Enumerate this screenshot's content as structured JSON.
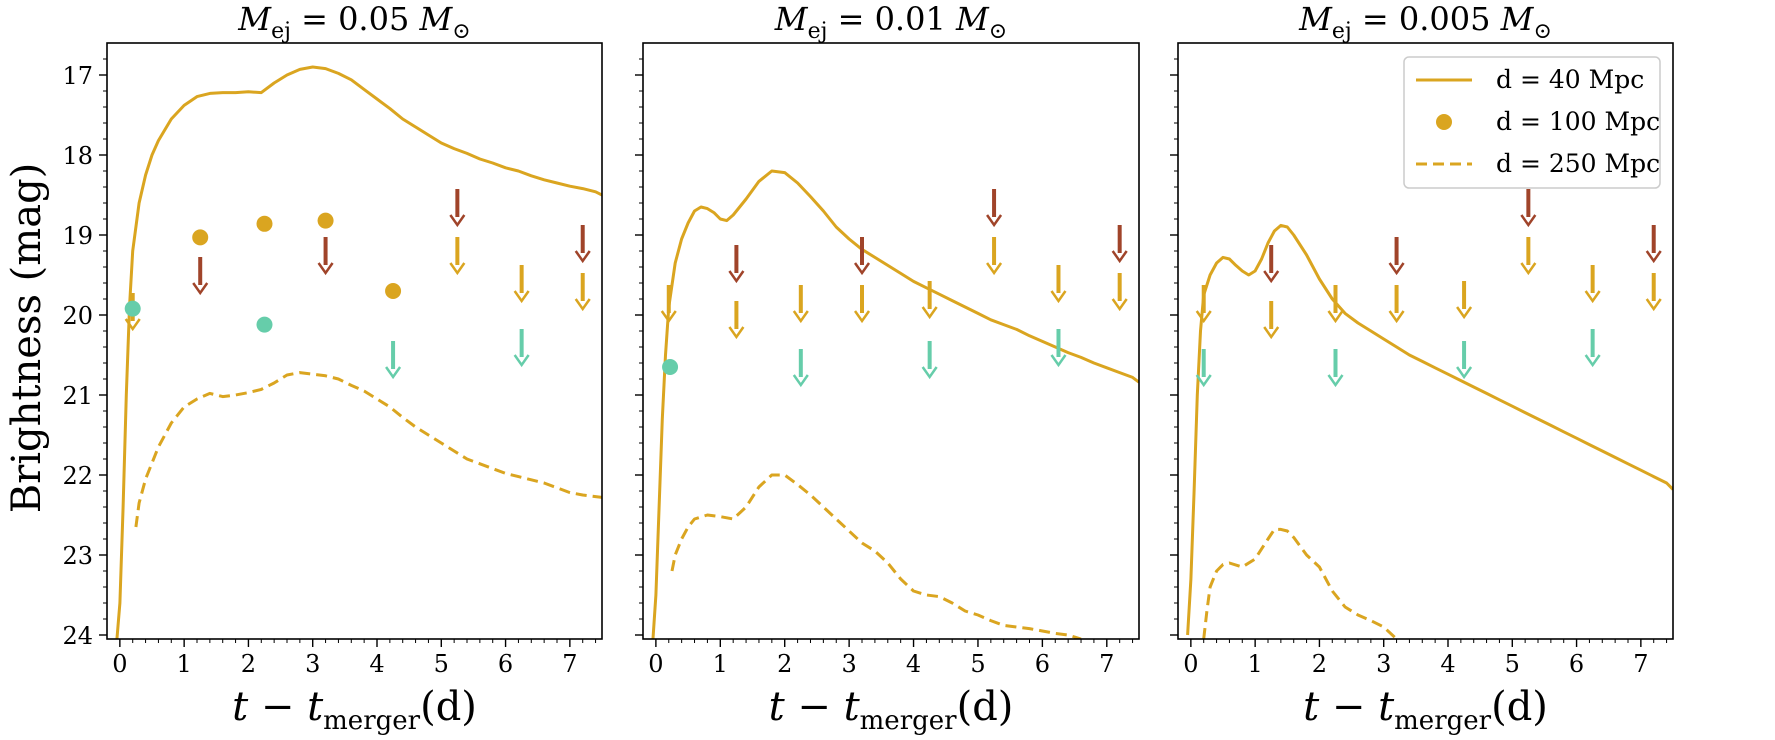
{
  "figure": {
    "ylabel": "Brightness (mag)",
    "xlabel_main": "t − t",
    "xlabel_sub": "merger",
    "xlabel_tail": "(d)"
  },
  "colors": {
    "model": "#DAA520",
    "arrow_brown": "#A0442A",
    "arrow_gold": "#DAA520",
    "arrow_teal": "#66CDAA",
    "point_gold": "#DAA520",
    "point_teal": "#66CDAA"
  },
  "legend": [
    {
      "label": "d = 40 Mpc",
      "style": "solid"
    },
    {
      "label": "d = 100 Mpc",
      "style": "marker"
    },
    {
      "label": "d = 250 Mpc",
      "style": "dashed"
    }
  ],
  "chart_data": [
    {
      "type": "line",
      "title_main": "M",
      "title_sub": "ej",
      "title_value": " = 0.05 M",
      "title_sun": "⊙",
      "xlim": [
        -0.2,
        7.5
      ],
      "ylim": [
        24.05,
        16.6
      ],
      "xticks": [
        "0",
        "1",
        "2",
        "3",
        "4",
        "5",
        "6",
        "7"
      ],
      "yticks": [
        "17",
        "18",
        "19",
        "20",
        "21",
        "22",
        "23",
        "24"
      ],
      "series": [
        {
          "name": "d = 40 Mpc",
          "style": "solid",
          "x": [
            -0.05,
            0.0,
            0.05,
            0.1,
            0.15,
            0.2,
            0.3,
            0.4,
            0.5,
            0.6,
            0.8,
            1.0,
            1.2,
            1.4,
            1.6,
            1.8,
            2.0,
            2.2,
            2.4,
            2.6,
            2.8,
            3.0,
            3.2,
            3.4,
            3.6,
            3.8,
            4.0,
            4.2,
            4.4,
            4.6,
            4.8,
            5.0,
            5.2,
            5.4,
            5.6,
            5.8,
            6.0,
            6.2,
            6.4,
            6.6,
            6.8,
            7.0,
            7.2,
            7.4,
            7.5
          ],
          "y": [
            24.1,
            23.6,
            22.4,
            21.0,
            19.9,
            19.2,
            18.6,
            18.25,
            18.0,
            17.82,
            17.55,
            17.38,
            17.27,
            17.23,
            17.22,
            17.22,
            17.21,
            17.22,
            17.1,
            17.0,
            16.93,
            16.9,
            16.92,
            16.98,
            17.06,
            17.18,
            17.3,
            17.42,
            17.55,
            17.65,
            17.75,
            17.85,
            17.92,
            17.98,
            18.05,
            18.1,
            18.16,
            18.2,
            18.26,
            18.31,
            18.35,
            18.39,
            18.42,
            18.46,
            18.5
          ]
        },
        {
          "name": "d = 250 Mpc",
          "style": "dashed",
          "x": [
            0.25,
            0.3,
            0.4,
            0.5,
            0.6,
            0.8,
            1.0,
            1.2,
            1.4,
            1.6,
            1.8,
            2.0,
            2.2,
            2.4,
            2.6,
            2.8,
            3.0,
            3.2,
            3.4,
            3.6,
            3.8,
            4.0,
            4.2,
            4.4,
            4.6,
            4.8,
            5.0,
            5.2,
            5.4,
            5.6,
            5.8,
            6.0,
            6.2,
            6.4,
            6.6,
            6.8,
            7.0,
            7.2,
            7.4,
            7.5
          ],
          "y": [
            22.65,
            22.35,
            22.05,
            21.85,
            21.65,
            21.35,
            21.15,
            21.05,
            20.98,
            21.02,
            21.0,
            20.97,
            20.93,
            20.85,
            20.75,
            20.72,
            20.74,
            20.76,
            20.8,
            20.88,
            20.95,
            21.05,
            21.15,
            21.28,
            21.4,
            21.5,
            21.6,
            21.7,
            21.8,
            21.86,
            21.92,
            21.98,
            22.02,
            22.06,
            22.1,
            22.16,
            22.22,
            22.25,
            22.27,
            22.28
          ]
        }
      ],
      "points": [
        {
          "x": 1.25,
          "y": 19.03,
          "color": "gold"
        },
        {
          "x": 2.25,
          "y": 18.86,
          "color": "gold"
        },
        {
          "x": 3.2,
          "y": 18.82,
          "color": "gold"
        },
        {
          "x": 4.25,
          "y": 19.7,
          "color": "gold"
        },
        {
          "x": 0.2,
          "y": 19.92,
          "color": "teal"
        },
        {
          "x": 2.25,
          "y": 20.12,
          "color": "teal"
        }
      ],
      "upper_limits": [
        {
          "x": 0.2,
          "y": 19.95,
          "color": "gold"
        },
        {
          "x": 1.25,
          "y": 19.5,
          "color": "brown"
        },
        {
          "x": 3.2,
          "y": 19.25,
          "color": "brown"
        },
        {
          "x": 5.25,
          "y": 18.65,
          "color": "brown"
        },
        {
          "x": 5.25,
          "y": 19.25,
          "color": "gold"
        },
        {
          "x": 6.25,
          "y": 19.6,
          "color": "gold"
        },
        {
          "x": 7.2,
          "y": 19.1,
          "color": "brown"
        },
        {
          "x": 7.2,
          "y": 19.7,
          "color": "gold"
        },
        {
          "x": 4.25,
          "y": 20.55,
          "color": "teal"
        },
        {
          "x": 6.25,
          "y": 20.4,
          "color": "teal"
        }
      ]
    },
    {
      "type": "line",
      "title_main": "M",
      "title_sub": "ej",
      "title_value": " = 0.01 M",
      "title_sun": "⊙",
      "xlim": [
        -0.2,
        7.5
      ],
      "ylim": [
        24.05,
        16.6
      ],
      "xticks": [
        "0",
        "1",
        "2",
        "3",
        "4",
        "5",
        "6",
        "7"
      ],
      "yticks": [],
      "series": [
        {
          "name": "d = 40 Mpc",
          "style": "solid",
          "x": [
            -0.05,
            0.0,
            0.05,
            0.1,
            0.15,
            0.2,
            0.3,
            0.4,
            0.5,
            0.6,
            0.7,
            0.8,
            0.9,
            1.0,
            1.1,
            1.2,
            1.4,
            1.6,
            1.8,
            2.0,
            2.2,
            2.4,
            2.6,
            2.8,
            3.0,
            3.2,
            3.4,
            3.6,
            3.8,
            4.0,
            4.2,
            4.4,
            4.6,
            4.8,
            5.0,
            5.2,
            5.4,
            5.6,
            5.8,
            6.0,
            6.2,
            6.4,
            6.6,
            6.8,
            7.0,
            7.2,
            7.4,
            7.5
          ],
          "y": [
            24.1,
            23.5,
            22.4,
            21.3,
            20.5,
            19.9,
            19.35,
            19.05,
            18.85,
            18.7,
            18.65,
            18.67,
            18.72,
            18.8,
            18.82,
            18.75,
            18.55,
            18.33,
            18.2,
            18.22,
            18.35,
            18.52,
            18.7,
            18.9,
            19.05,
            19.18,
            19.28,
            19.38,
            19.48,
            19.58,
            19.66,
            19.74,
            19.82,
            19.9,
            19.98,
            20.06,
            20.12,
            20.18,
            20.26,
            20.33,
            20.4,
            20.47,
            20.53,
            20.6,
            20.66,
            20.72,
            20.78,
            20.84
          ]
        },
        {
          "name": "d = 250 Mpc",
          "style": "dashed",
          "x": [
            0.25,
            0.3,
            0.4,
            0.5,
            0.6,
            0.8,
            1.0,
            1.2,
            1.4,
            1.6,
            1.8,
            2.0,
            2.2,
            2.4,
            2.6,
            2.8,
            3.0,
            3.2,
            3.4,
            3.6,
            3.8,
            4.0,
            4.2,
            4.4,
            4.6,
            4.8,
            5.0,
            5.2,
            5.4,
            5.6,
            5.8,
            6.0,
            6.2,
            6.4,
            6.6
          ],
          "y": [
            23.2,
            23.0,
            22.8,
            22.65,
            22.55,
            22.5,
            22.52,
            22.55,
            22.4,
            22.15,
            22.0,
            22.0,
            22.12,
            22.25,
            22.4,
            22.55,
            22.7,
            22.85,
            22.95,
            23.1,
            23.3,
            23.45,
            23.5,
            23.52,
            23.6,
            23.7,
            23.75,
            23.82,
            23.88,
            23.9,
            23.92,
            23.95,
            23.98,
            24.0,
            24.05
          ]
        }
      ],
      "points": [
        {
          "x": 0.22,
          "y": 20.65,
          "color": "teal"
        }
      ],
      "upper_limits": [
        {
          "x": 0.2,
          "y": 19.85,
          "color": "gold"
        },
        {
          "x": 1.25,
          "y": 19.35,
          "color": "brown"
        },
        {
          "x": 1.25,
          "y": 20.05,
          "color": "gold"
        },
        {
          "x": 2.25,
          "y": 19.85,
          "color": "gold"
        },
        {
          "x": 3.2,
          "y": 19.25,
          "color": "brown"
        },
        {
          "x": 3.2,
          "y": 19.85,
          "color": "gold"
        },
        {
          "x": 4.25,
          "y": 19.8,
          "color": "gold"
        },
        {
          "x": 5.25,
          "y": 18.65,
          "color": "brown"
        },
        {
          "x": 5.25,
          "y": 19.25,
          "color": "gold"
        },
        {
          "x": 6.25,
          "y": 19.6,
          "color": "gold"
        },
        {
          "x": 7.2,
          "y": 19.1,
          "color": "brown"
        },
        {
          "x": 7.2,
          "y": 19.7,
          "color": "gold"
        },
        {
          "x": 2.25,
          "y": 20.65,
          "color": "teal"
        },
        {
          "x": 4.25,
          "y": 20.55,
          "color": "teal"
        },
        {
          "x": 6.25,
          "y": 20.4,
          "color": "teal"
        }
      ]
    },
    {
      "type": "line",
      "title_main": "M",
      "title_sub": "ej",
      "title_value": " = 0.005 M",
      "title_sun": "⊙",
      "xlim": [
        -0.2,
        7.5
      ],
      "ylim": [
        24.05,
        16.6
      ],
      "xticks": [
        "0",
        "1",
        "2",
        "3",
        "4",
        "5",
        "6",
        "7"
      ],
      "yticks": [],
      "series": [
        {
          "name": "d = 40 Mpc",
          "style": "solid",
          "x": [
            -0.05,
            0.0,
            0.05,
            0.1,
            0.15,
            0.2,
            0.3,
            0.4,
            0.5,
            0.6,
            0.7,
            0.8,
            0.9,
            1.0,
            1.1,
            1.2,
            1.3,
            1.4,
            1.5,
            1.6,
            1.8,
            2.0,
            2.2,
            2.4,
            2.6,
            2.8,
            3.0,
            3.2,
            3.4,
            3.6,
            3.8,
            4.0,
            4.2,
            4.4,
            4.6,
            4.8,
            5.0,
            5.2,
            5.4,
            5.6,
            5.8,
            6.0,
            6.2,
            6.4,
            6.6,
            6.8,
            7.0,
            7.2,
            7.4,
            7.5
          ],
          "y": [
            24.0,
            23.3,
            22.2,
            21.0,
            20.2,
            19.75,
            19.5,
            19.35,
            19.28,
            19.3,
            19.38,
            19.45,
            19.5,
            19.45,
            19.3,
            19.1,
            18.95,
            18.88,
            18.9,
            19.0,
            19.25,
            19.55,
            19.8,
            19.98,
            20.1,
            20.2,
            20.3,
            20.4,
            20.5,
            20.58,
            20.66,
            20.74,
            20.82,
            20.9,
            20.98,
            21.06,
            21.14,
            21.22,
            21.3,
            21.38,
            21.46,
            21.54,
            21.62,
            21.7,
            21.78,
            21.86,
            21.94,
            22.02,
            22.1,
            22.18
          ]
        },
        {
          "name": "d = 250 Mpc",
          "style": "dashed",
          "x": [
            0.2,
            0.25,
            0.3,
            0.4,
            0.5,
            0.6,
            0.8,
            1.0,
            1.2,
            1.3,
            1.4,
            1.5,
            1.6,
            1.8,
            2.0,
            2.2,
            2.4,
            2.6,
            2.8,
            3.0,
            3.2
          ],
          "y": [
            24.05,
            23.7,
            23.4,
            23.2,
            23.12,
            23.1,
            23.15,
            23.05,
            22.8,
            22.68,
            22.68,
            22.7,
            22.78,
            23.0,
            23.15,
            23.45,
            23.65,
            23.75,
            23.82,
            23.9,
            24.05
          ]
        }
      ],
      "points": [],
      "upper_limits": [
        {
          "x": 0.2,
          "y": 19.85,
          "color": "gold"
        },
        {
          "x": 1.25,
          "y": 19.35,
          "color": "brown"
        },
        {
          "x": 1.25,
          "y": 20.05,
          "color": "gold"
        },
        {
          "x": 2.25,
          "y": 19.85,
          "color": "gold"
        },
        {
          "x": 3.2,
          "y": 19.25,
          "color": "brown"
        },
        {
          "x": 3.2,
          "y": 19.85,
          "color": "gold"
        },
        {
          "x": 4.25,
          "y": 19.8,
          "color": "gold"
        },
        {
          "x": 5.25,
          "y": 18.65,
          "color": "brown"
        },
        {
          "x": 5.25,
          "y": 19.25,
          "color": "gold"
        },
        {
          "x": 6.25,
          "y": 19.6,
          "color": "gold"
        },
        {
          "x": 7.2,
          "y": 19.1,
          "color": "brown"
        },
        {
          "x": 7.2,
          "y": 19.7,
          "color": "gold"
        },
        {
          "x": 0.2,
          "y": 20.65,
          "color": "teal"
        },
        {
          "x": 2.25,
          "y": 20.65,
          "color": "teal"
        },
        {
          "x": 4.25,
          "y": 20.55,
          "color": "teal"
        },
        {
          "x": 6.25,
          "y": 20.4,
          "color": "teal"
        }
      ],
      "show_legend": true
    }
  ]
}
